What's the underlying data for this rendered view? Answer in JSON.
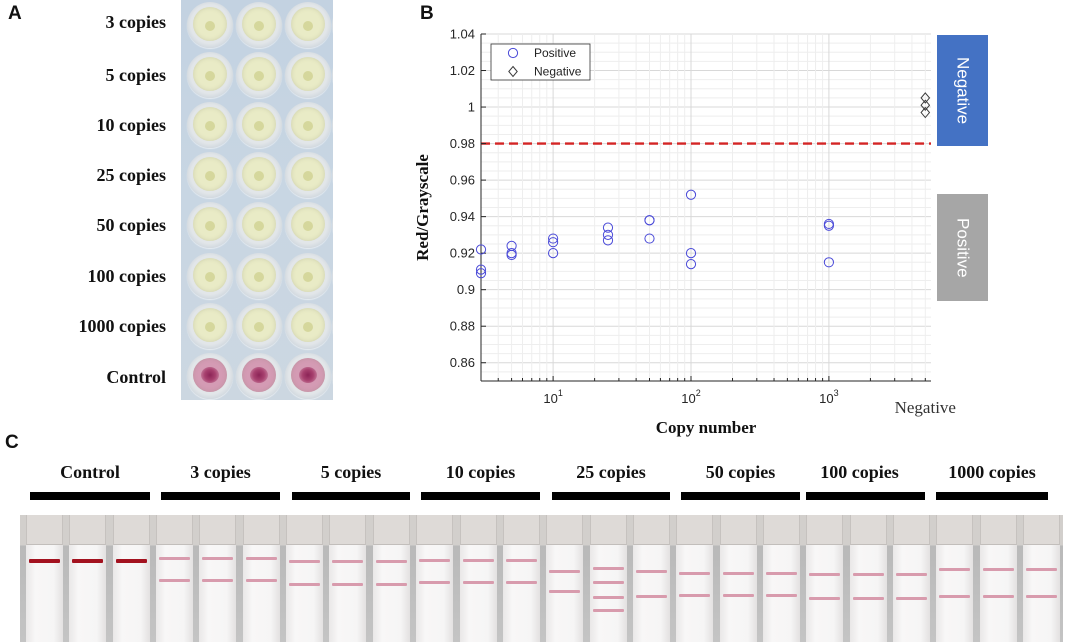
{
  "panels": {
    "a_label": "A",
    "b_label": "B",
    "c_label": "C"
  },
  "panel_a": {
    "row_labels": [
      "3 copies",
      "5 copies",
      "10 copies",
      "25 copies",
      "50 copies",
      "100 copies",
      "1000 copies",
      "Control"
    ],
    "colors": {
      "sample_well": "#e9ebc6",
      "control_well": "#d49bb4"
    }
  },
  "chart_data": {
    "type": "scatter",
    "title": "",
    "xlabel": "Copy number",
    "ylabel": "Red/Grayscale",
    "x_log_scale": true,
    "xlim": [
      3,
      5500
    ],
    "ylim": [
      0.85,
      1.04
    ],
    "grid": true,
    "yticks": [
      0.86,
      0.88,
      0.9,
      0.92,
      0.94,
      0.96,
      0.98,
      1,
      1.02,
      1.04
    ],
    "ytick_labels": [
      "0.86",
      "0.88",
      "0.9",
      "0.92",
      "0.94",
      "0.96",
      "0.98",
      "1",
      "1.02",
      "1.04"
    ],
    "xticks": [
      {
        "value": 10,
        "base": "10",
        "exp": "1"
      },
      {
        "value": 100,
        "base": "10",
        "exp": "2"
      },
      {
        "value": 1000,
        "base": "10",
        "exp": "3"
      }
    ],
    "category_ticks": [
      {
        "value": 5000,
        "label": "Negative"
      }
    ],
    "threshold": {
      "y": 0.98,
      "color": "#d42525",
      "dashed": true
    },
    "series": [
      {
        "name": "Positive",
        "marker": "circle",
        "color": "#4a4ad8",
        "points": [
          [
            3,
            0.922
          ],
          [
            3,
            0.911
          ],
          [
            3,
            0.909
          ],
          [
            5,
            0.924
          ],
          [
            5,
            0.92
          ],
          [
            5,
            0.919
          ],
          [
            10,
            0.928
          ],
          [
            10,
            0.926
          ],
          [
            10,
            0.92
          ],
          [
            25,
            0.934
          ],
          [
            25,
            0.93
          ],
          [
            25,
            0.927
          ],
          [
            50,
            0.938
          ],
          [
            50,
            0.938
          ],
          [
            50,
            0.928
          ],
          [
            100,
            0.952
          ],
          [
            100,
            0.92
          ],
          [
            100,
            0.914
          ],
          [
            1000,
            0.936
          ],
          [
            1000,
            0.935
          ],
          [
            1000,
            0.915
          ]
        ]
      },
      {
        "name": "Negative",
        "marker": "diamond",
        "color": "#3c3c3c",
        "points": [
          [
            5000,
            1.005
          ],
          [
            5000,
            1.001
          ],
          [
            5000,
            0.997
          ]
        ]
      }
    ]
  },
  "badges": [
    {
      "label": "Negative",
      "color": "#4472c4"
    },
    {
      "label": "Positive",
      "color": "#a6a6a6"
    }
  ],
  "panel_c": {
    "groups": [
      "Control",
      "3 copies",
      "5 copies",
      "10 copies",
      "25 copies",
      "50 copies",
      "100 copies",
      "1000 copies"
    ],
    "colors": {
      "control_line": "#a3121f",
      "test_line": "#d89bad"
    }
  }
}
